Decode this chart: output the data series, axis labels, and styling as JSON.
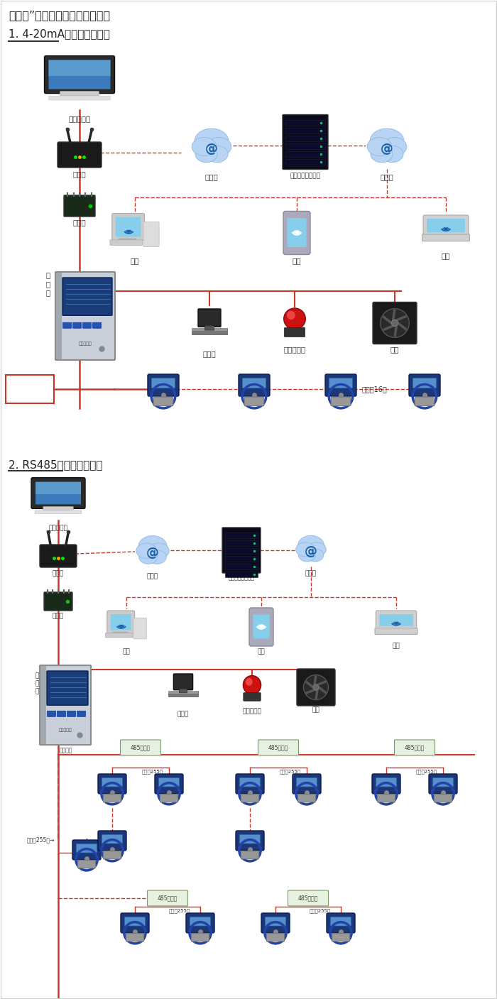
{
  "title1": "机气猫”系列带显示固定式检测仪",
  "subtitle1": "1. 4-20mA信号连接系统图",
  "subtitle2": "2. RS485信号连接系统图",
  "bg_color": "#ffffff",
  "red": "#c8392b",
  "gray": "#888888",
  "fig_width": 7.0,
  "fig_height": 14.07
}
